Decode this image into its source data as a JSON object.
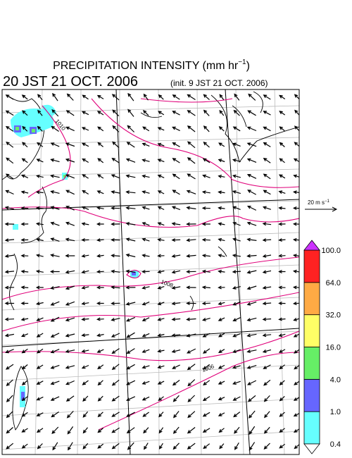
{
  "header": {
    "title": "PRECIPITATION INTENSITY (mm hr",
    "title_exponent": "−1",
    "title_close": ")",
    "time": "20 JST 21 OCT. 2006",
    "init": "(init. 9 JST 21 OCT. 2006)"
  },
  "reference_vector": {
    "label": "20 m s",
    "exponent": "−1"
  },
  "legend": {
    "labels": [
      "0.4",
      "1.0",
      "4.0",
      "16.0",
      "32.0",
      "64.0",
      "100.0"
    ],
    "colors": [
      "#66ffff",
      "#6666ff",
      "#66ee66",
      "#ffff66",
      "#ffaa44",
      "#ff2222"
    ],
    "over_color": "#cc33ff",
    "under_color": "#ffffff"
  },
  "isobars": {
    "labels": [
      "1010",
      "1008",
      "1006"
    ]
  }
}
